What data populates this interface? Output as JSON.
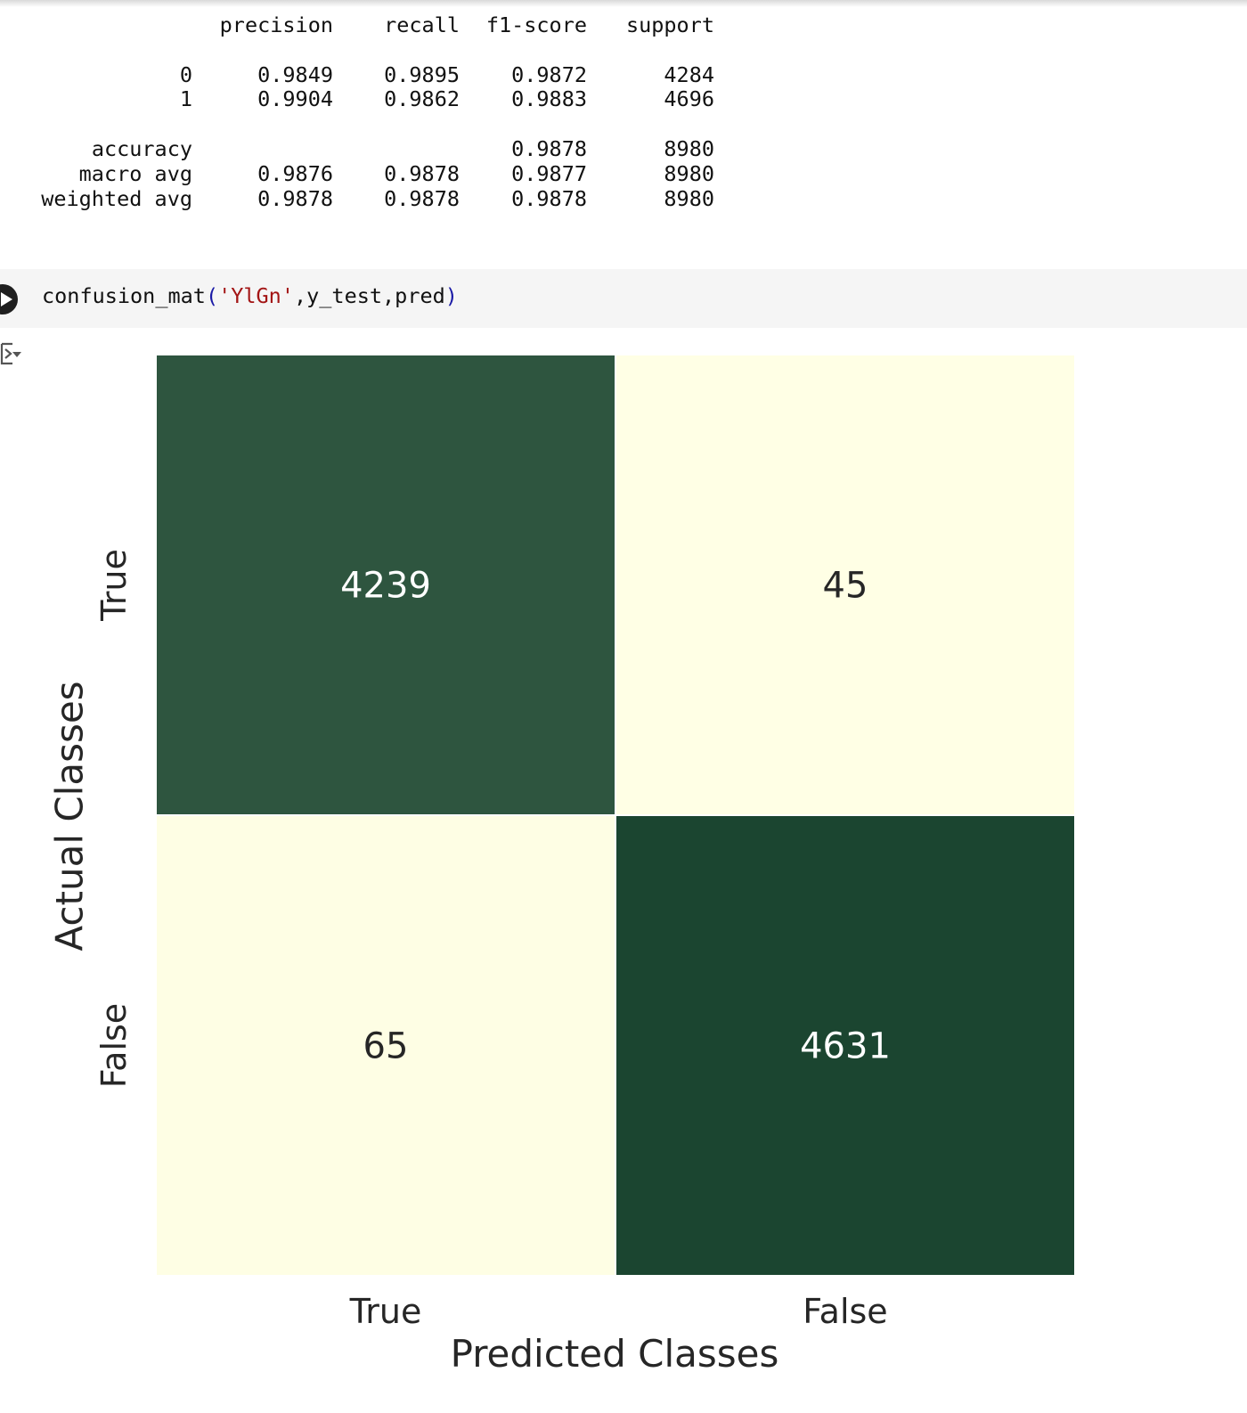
{
  "report": {
    "headers": [
      "precision",
      "recall",
      "f1-score",
      "support"
    ],
    "rows": [
      {
        "label": "0",
        "precision": "0.9849",
        "recall": "0.9895",
        "f1": "0.9872",
        "support": "4284"
      },
      {
        "label": "1",
        "precision": "0.9904",
        "recall": "0.9862",
        "f1": "0.9883",
        "support": "4696"
      },
      {
        "label": "accuracy",
        "precision": "",
        "recall": "",
        "f1": "0.9878",
        "support": "8980"
      },
      {
        "label": "macro avg",
        "precision": "0.9876",
        "recall": "0.9878",
        "f1": "0.9877",
        "support": "8980"
      },
      {
        "label": "weighted avg",
        "precision": "0.9878",
        "recall": "0.9878",
        "f1": "0.9878",
        "support": "8980"
      }
    ]
  },
  "code_cell": {
    "func": "confusion_mat",
    "open_paren": "(",
    "arg_string": "'YlGn'",
    "args_rest": ",y_test,pred",
    "close_paren": ")"
  },
  "icons": {
    "run": "play-circle-icon",
    "output": "output-toggle-icon"
  },
  "chart_data": {
    "type": "heatmap",
    "colormap": "YlGn",
    "x_categories": [
      "True",
      "False"
    ],
    "y_categories": [
      "True",
      "False"
    ],
    "values": [
      [
        4239,
        45
      ],
      [
        65,
        4631
      ]
    ],
    "xlabel": "Predicted Classes",
    "ylabel": "Actual Classes",
    "colors": {
      "low": "#ffffe5",
      "high": "#1b4530",
      "mid_high": "#285b37",
      "text_dark": "#262626",
      "text_light": "#ffffff"
    }
  }
}
